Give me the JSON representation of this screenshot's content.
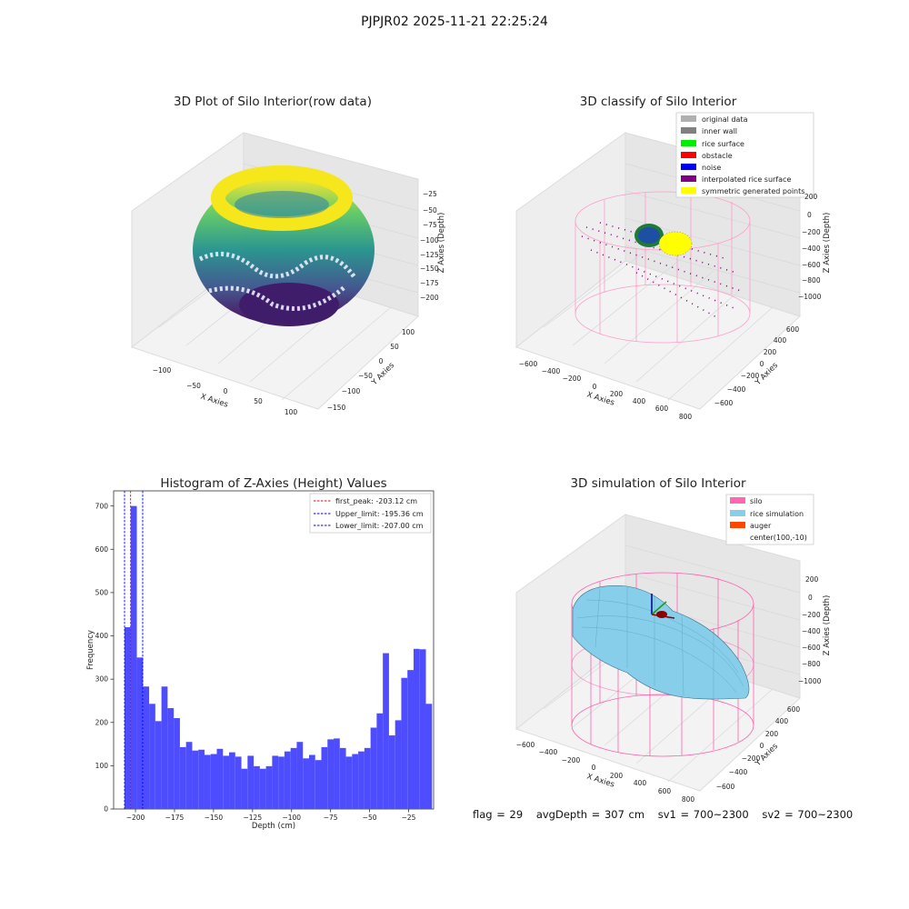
{
  "suptitle": "PJPJR02 2025-11-21 22:25:24",
  "footer": {
    "flag": "flag = 29",
    "avg_depth": "avgDepth = 307 cm",
    "sv1": "sv1 = 700~2300",
    "sv2": "sv2 = 700~2300"
  },
  "chart_data": [
    {
      "type": "scatter",
      "title": "3D Plot of Silo Interior(row data)",
      "xlabel": "X Axies",
      "ylabel": "Y Axies",
      "zlabel": "Z Axies (Depth)",
      "x_ticks": [
        "−100",
        "−50",
        "0",
        "50",
        "100"
      ],
      "y_ticks": [
        "−150",
        "−100",
        "−50",
        "0",
        "50",
        "100"
      ],
      "z_ticks": [
        "−25",
        "−50",
        "−75",
        "−100",
        "−125",
        "−150",
        "−175",
        "−200"
      ],
      "colormap": "viridis",
      "legend": []
    },
    {
      "type": "scatter",
      "title": "3D classify of Silo Interior",
      "xlabel": "X Axies",
      "ylabel": "Y Axies",
      "zlabel": "Z Axies (Depth)",
      "x_ticks": [
        "−600",
        "−400",
        "−200",
        "0",
        "200",
        "400",
        "600",
        "800"
      ],
      "y_ticks": [
        "−600",
        "−400",
        "−200",
        "0",
        "200",
        "400",
        "600"
      ],
      "z_ticks": [
        "200",
        "0",
        "−200",
        "−400",
        "−600",
        "−800",
        "−1000"
      ],
      "legend_placement": "top-right",
      "legend": [
        {
          "label": "original data",
          "color": "#b0b0b0"
        },
        {
          "label": "inner wall",
          "color": "#808080"
        },
        {
          "label": "rice surface",
          "color": "#00ee00"
        },
        {
          "label": "obstacle",
          "color": "#ff0000"
        },
        {
          "label": "noise",
          "color": "#0000ee"
        },
        {
          "label": "interpolated rice surface",
          "color": "#800080"
        },
        {
          "label": "symmetric generated points",
          "color": "#ffff00"
        }
      ]
    },
    {
      "type": "bar",
      "title": "Histogram of Z-Axies (Height) Values",
      "xlabel": "Depth (cm)",
      "ylabel": "Frequency",
      "xlim": [
        -214,
        -9
      ],
      "ylim": [
        0,
        735
      ],
      "x_ticks": [
        -200,
        -175,
        -150,
        -125,
        -100,
        -75,
        -50,
        -25
      ],
      "y_ticks": [
        0,
        100,
        200,
        300,
        400,
        500,
        600,
        700
      ],
      "bar_color": "#4d4dff",
      "bins": {
        "start": -207.0,
        "width": 3.94,
        "values": [
          420,
          700,
          350,
          283,
          243,
          203,
          283,
          233,
          210,
          143,
          155,
          135,
          137,
          125,
          127,
          139,
          123,
          131,
          121,
          93,
          123,
          99,
          93,
          99,
          123,
          121,
          133,
          141,
          155,
          117,
          125,
          113,
          143,
          161,
          163,
          141,
          121,
          127,
          133,
          141,
          188,
          221,
          360,
          170,
          205,
          303,
          321,
          370,
          369,
          243
        ]
      },
      "lines": [
        {
          "label": "first_peak: -203.12 cm",
          "x": -203.12,
          "color": "#ff0000"
        },
        {
          "label": "Upper_limit: -195.36 cm",
          "x": -195.36,
          "color": "#0000ff"
        },
        {
          "label": "Lower_limit: -207.00 cm",
          "x": -207.0,
          "color": "#0000ff"
        }
      ],
      "legend_placement": "top-right"
    },
    {
      "type": "surface",
      "title": "3D simulation of Silo Interior",
      "xlabel": "X Axies",
      "ylabel": "Y Axies",
      "zlabel": "Z Axies (Depth)",
      "x_ticks": [
        "−600",
        "−400",
        "−200",
        "0",
        "200",
        "400",
        "600",
        "800"
      ],
      "y_ticks": [
        "−600",
        "−400",
        "−200",
        "0",
        "200",
        "400",
        "600"
      ],
      "z_ticks": [
        "200",
        "0",
        "−200",
        "−400",
        "−600",
        "−800",
        "−1000"
      ],
      "legend_placement": "top-right",
      "legend": [
        {
          "label": "silo",
          "color": "#ff69b4"
        },
        {
          "label": "rice simulation",
          "color": "#87ceeb"
        },
        {
          "label": "auger",
          "color": "#ff4500"
        },
        {
          "label": "center(100,-10)",
          "color": ""
        }
      ]
    }
  ]
}
